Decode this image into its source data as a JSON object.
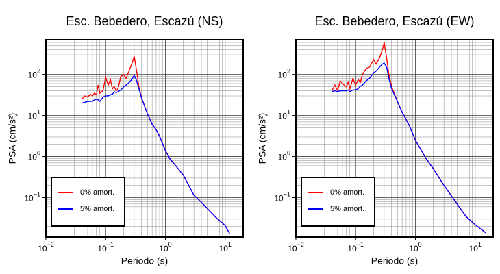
{
  "chart_data": [
    {
      "type": "line",
      "title": "Esc. Bebedero, Escazú (NS)",
      "x_label": "Periodo (s)",
      "y_label": "PSA (cm/s²)",
      "xlog": true,
      "ylog": true,
      "grid": true,
      "legend": "lower left",
      "xlim": [
        0.01,
        20
      ],
      "ylim": [
        0.011,
        700
      ],
      "xticks": [
        {
          "value": 0.01,
          "label": "10^-2"
        },
        {
          "value": 0.1,
          "label": "10^-1"
        },
        {
          "value": 1,
          "label": "10^0"
        },
        {
          "value": 10,
          "label": "10^1"
        }
      ],
      "yticks": [
        {
          "value": 0.1,
          "label": "10^-1"
        },
        {
          "value": 1,
          "label": "10^0"
        },
        {
          "value": 10,
          "label": "10^1"
        },
        {
          "value": 100,
          "label": "10^2"
        }
      ],
      "x": [
        0.04,
        0.045,
        0.05,
        0.055,
        0.06,
        0.065,
        0.07,
        0.075,
        0.08,
        0.09,
        0.1,
        0.11,
        0.12,
        0.13,
        0.14,
        0.15,
        0.16,
        0.18,
        0.2,
        0.22,
        0.25,
        0.28,
        0.3,
        0.33,
        0.36,
        0.4,
        0.5,
        0.6,
        0.7,
        0.8,
        1,
        1.2,
        1.5,
        2,
        3,
        4,
        5,
        7,
        10,
        12
      ],
      "series": [
        {
          "name": "0% amort.",
          "color": "#ff0000",
          "values": [
            25,
            30,
            28,
            33,
            30,
            35,
            32,
            55,
            35,
            40,
            85,
            55,
            75,
            45,
            50,
            40,
            45,
            90,
            100,
            80,
            130,
            200,
            280,
            120,
            50,
            27,
            11,
            6.2,
            4.5,
            3.1,
            1.4,
            0.86,
            0.59,
            0.35,
            0.115,
            0.077,
            0.055,
            0.033,
            0.021,
            0.013
          ]
        },
        {
          "name": "5% amort.",
          "color": "#0000ff",
          "values": [
            20,
            21,
            22,
            22,
            22,
            24,
            25,
            24,
            22,
            28,
            30,
            30,
            32,
            33,
            38,
            36,
            38,
            42,
            50,
            55,
            65,
            80,
            95,
            70,
            45,
            26,
            11,
            6.2,
            4.5,
            3.1,
            1.4,
            0.86,
            0.59,
            0.35,
            0.115,
            0.077,
            0.055,
            0.033,
            0.021,
            0.013
          ]
        }
      ]
    },
    {
      "type": "line",
      "title": "Esc. Bebedero, Escazú (EW)",
      "x_label": "Periodo (s)",
      "y_label": "PSA (cm/s²)",
      "xlog": true,
      "ylog": true,
      "grid": true,
      "legend": "lower left",
      "xlim": [
        0.01,
        20
      ],
      "ylim": [
        0.011,
        700
      ],
      "xticks": [
        {
          "value": 0.01,
          "label": "10^-2"
        },
        {
          "value": 0.1,
          "label": "10^-1"
        },
        {
          "value": 1,
          "label": "10^0"
        },
        {
          "value": 10,
          "label": "10^1"
        }
      ],
      "yticks": [
        {
          "value": 0.1,
          "label": "10^-1"
        },
        {
          "value": 1,
          "label": "10^0"
        },
        {
          "value": 10,
          "label": "10^1"
        },
        {
          "value": 100,
          "label": "10^2"
        }
      ],
      "x": [
        0.04,
        0.045,
        0.05,
        0.055,
        0.06,
        0.07,
        0.075,
        0.08,
        0.09,
        0.1,
        0.11,
        0.12,
        0.13,
        0.15,
        0.17,
        0.2,
        0.22,
        0.25,
        0.28,
        0.3,
        0.33,
        0.36,
        0.4,
        0.5,
        0.6,
        0.7,
        0.8,
        1,
        1.5,
        2,
        3,
        5,
        7,
        10,
        15
      ],
      "series": [
        {
          "name": "0% amort.",
          "color": "#ff0000",
          "values": [
            40,
            55,
            40,
            70,
            60,
            50,
            65,
            45,
            80,
            55,
            75,
            65,
            100,
            140,
            150,
            230,
            180,
            250,
            400,
            600,
            250,
            100,
            50,
            22,
            12,
            8,
            5.5,
            2.5,
            0.9,
            0.5,
            0.2,
            0.07,
            0.035,
            0.022,
            0.014
          ]
        },
        {
          "name": "5% amort.",
          "color": "#0000ff",
          "values": [
            38,
            40,
            38,
            40,
            40,
            40,
            42,
            38,
            42,
            42,
            45,
            52,
            55,
            70,
            80,
            110,
            120,
            150,
            180,
            190,
            150,
            80,
            45,
            22,
            12,
            8,
            5.5,
            2.5,
            0.9,
            0.5,
            0.2,
            0.07,
            0.035,
            0.022,
            0.014
          ]
        }
      ]
    }
  ]
}
